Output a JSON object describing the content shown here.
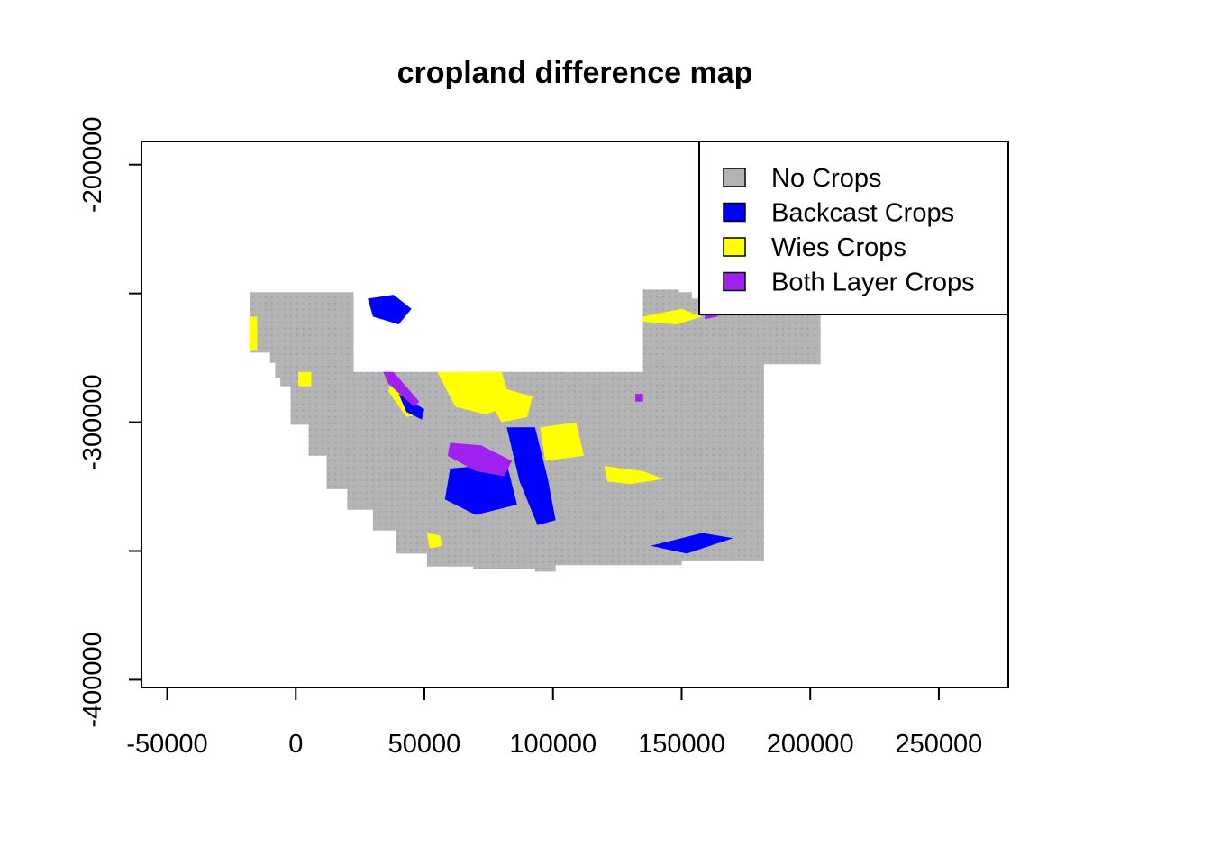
{
  "chart_data": {
    "type": "raster-map",
    "title": "cropland difference map",
    "xlabel": "",
    "ylabel": "",
    "xlim": [
      -60000,
      277000
    ],
    "ylim": [
      -403000,
      -191000
    ],
    "x_ticks": [
      {
        "value": -50000,
        "label": "-50000"
      },
      {
        "value": 0,
        "label": "0"
      },
      {
        "value": 50000,
        "label": "50000"
      },
      {
        "value": 100000,
        "label": "100000"
      },
      {
        "value": 150000,
        "label": "150000"
      },
      {
        "value": 200000,
        "label": "200000"
      },
      {
        "value": 250000,
        "label": "250000"
      }
    ],
    "y_ticks": [
      {
        "value": -200000,
        "label": "-200000"
      },
      {
        "value": -250000,
        "label": ""
      },
      {
        "value": -300000,
        "label": "-300000"
      },
      {
        "value": -350000,
        "label": ""
      },
      {
        "value": -400000,
        "label": "-400000"
      }
    ],
    "legend": {
      "placement": "top-right",
      "entries": [
        {
          "label": "No Crops",
          "color": "#b3b3b3"
        },
        {
          "label": "Backcast Crops",
          "color": "#0000ff"
        },
        {
          "label": "Wies Crops",
          "color": "#ffff00"
        },
        {
          "label": "Both Layer Crops",
          "color": "#a020f0"
        }
      ]
    },
    "region_outline": [
      [
        -18000,
        -249500
      ],
      [
        22500,
        -249500
      ],
      [
        22500,
        -280500
      ],
      [
        56000,
        -280500
      ],
      [
        56000,
        -282000
      ],
      [
        63000,
        -282000
      ],
      [
        63000,
        -280500
      ],
      [
        135000,
        -280500
      ],
      [
        135000,
        -248500
      ],
      [
        149000,
        -248500
      ],
      [
        149000,
        -249500
      ],
      [
        154000,
        -249500
      ],
      [
        154000,
        -252000
      ],
      [
        204000,
        -252000
      ],
      [
        204000,
        -277500
      ],
      [
        182000,
        -277500
      ],
      [
        182000,
        -354000
      ],
      [
        150000,
        -354000
      ],
      [
        150000,
        -355500
      ],
      [
        101000,
        -355500
      ],
      [
        101000,
        -358000
      ],
      [
        93000,
        -358000
      ],
      [
        93000,
        -357000
      ],
      [
        69000,
        -357000
      ],
      [
        69000,
        -356000
      ],
      [
        51000,
        -356000
      ],
      [
        51000,
        -351000
      ],
      [
        39000,
        -351000
      ],
      [
        39000,
        -342000
      ],
      [
        30000,
        -342000
      ],
      [
        30000,
        -334000
      ],
      [
        20000,
        -334000
      ],
      [
        20000,
        -326000
      ],
      [
        12000,
        -326000
      ],
      [
        12000,
        -313000
      ],
      [
        5000,
        -313000
      ],
      [
        5000,
        -301000
      ],
      [
        -2000,
        -301000
      ],
      [
        -2000,
        -286000
      ],
      [
        -6000,
        -286000
      ],
      [
        -6000,
        -283000
      ],
      [
        -8000,
        -283000
      ],
      [
        -8000,
        -277000
      ],
      [
        -10000,
        -277000
      ],
      [
        -10000,
        -273000
      ],
      [
        -18000,
        -273000
      ]
    ],
    "crop_patches": [
      {
        "class": "Wies Crops",
        "polygon": [
          [
            -18000,
            -259000
          ],
          [
            -15000,
            -259000
          ],
          [
            -15000,
            -272000
          ],
          [
            -18000,
            -272000
          ]
        ]
      },
      {
        "class": "Wies Crops",
        "polygon": [
          [
            135000,
            -259000
          ],
          [
            150000,
            -256000
          ],
          [
            158000,
            -259000
          ],
          [
            148000,
            -262000
          ],
          [
            135000,
            -261000
          ]
        ]
      },
      {
        "class": "Wies Crops",
        "polygon": [
          [
            55000,
            -280500
          ],
          [
            80000,
            -280500
          ],
          [
            84000,
            -293000
          ],
          [
            74000,
            -297000
          ],
          [
            62000,
            -294000
          ]
        ]
      },
      {
        "class": "Wies Crops",
        "polygon": [
          [
            38000,
            -282000
          ],
          [
            45000,
            -290000
          ],
          [
            48000,
            -297000
          ],
          [
            43000,
            -298000
          ],
          [
            36000,
            -288000
          ]
        ]
      },
      {
        "class": "Wies Crops",
        "polygon": [
          [
            78000,
            -286000
          ],
          [
            92000,
            -290000
          ],
          [
            90000,
            -298000
          ],
          [
            80000,
            -300000
          ],
          [
            76000,
            -293000
          ]
        ]
      },
      {
        "class": "Wies Crops",
        "polygon": [
          [
            95000,
            -302000
          ],
          [
            109000,
            -300000
          ],
          [
            112000,
            -313000
          ],
          [
            97000,
            -315000
          ]
        ]
      },
      {
        "class": "Wies Crops",
        "polygon": [
          [
            120000,
            -317000
          ],
          [
            135000,
            -319000
          ],
          [
            143000,
            -322000
          ],
          [
            130000,
            -324000
          ],
          [
            121000,
            -323000
          ]
        ]
      },
      {
        "class": "Wies Crops",
        "polygon": [
          [
            51000,
            -343000
          ],
          [
            56000,
            -344000
          ],
          [
            57000,
            -348000
          ],
          [
            52000,
            -349000
          ]
        ]
      },
      {
        "class": "Wies Crops",
        "polygon": [
          [
            1000,
            -280500
          ],
          [
            6000,
            -280500
          ],
          [
            6000,
            -286000
          ],
          [
            1000,
            -286000
          ]
        ]
      },
      {
        "class": "Backcast Crops",
        "polygon": [
          [
            28000,
            -252000
          ],
          [
            38000,
            -250500
          ],
          [
            45000,
            -256000
          ],
          [
            40000,
            -262000
          ],
          [
            30000,
            -259000
          ]
        ]
      },
      {
        "class": "Backcast Crops",
        "polygon": [
          [
            82000,
            -302000
          ],
          [
            93000,
            -302000
          ],
          [
            98000,
            -322000
          ],
          [
            101000,
            -338000
          ],
          [
            94000,
            -340000
          ],
          [
            87000,
            -323000
          ]
        ]
      },
      {
        "class": "Backcast Crops",
        "polygon": [
          [
            60000,
            -318000
          ],
          [
            82000,
            -316000
          ],
          [
            86000,
            -332000
          ],
          [
            70000,
            -336000
          ],
          [
            58000,
            -330000
          ]
        ]
      },
      {
        "class": "Backcast Crops",
        "polygon": [
          [
            138000,
            -348000
          ],
          [
            158000,
            -343000
          ],
          [
            170000,
            -345000
          ],
          [
            152000,
            -351000
          ]
        ]
      },
      {
        "class": "Backcast Crops",
        "polygon": [
          [
            40000,
            -289000
          ],
          [
            50000,
            -295000
          ],
          [
            49000,
            -299000
          ],
          [
            43000,
            -296000
          ]
        ]
      },
      {
        "class": "Both Layer Crops",
        "polygon": [
          [
            60000,
            -308000
          ],
          [
            72000,
            -309000
          ],
          [
            84000,
            -315000
          ],
          [
            81000,
            -321000
          ],
          [
            70000,
            -319000
          ],
          [
            59000,
            -313000
          ]
        ]
      },
      {
        "class": "Both Layer Crops",
        "polygon": [
          [
            34000,
            -280500
          ],
          [
            38000,
            -280500
          ],
          [
            48000,
            -292000
          ],
          [
            46000,
            -294000
          ],
          [
            36000,
            -285000
          ]
        ]
      },
      {
        "class": "Both Layer Crops",
        "polygon": [
          [
            159000,
            -257000
          ],
          [
            164000,
            -256000
          ],
          [
            164000,
            -259000
          ],
          [
            159000,
            -260000
          ]
        ]
      },
      {
        "class": "Both Layer Crops",
        "polygon": [
          [
            132000,
            -289000
          ],
          [
            135000,
            -289000
          ],
          [
            135000,
            -292000
          ],
          [
            132000,
            -292000
          ]
        ]
      }
    ],
    "grid": false
  }
}
